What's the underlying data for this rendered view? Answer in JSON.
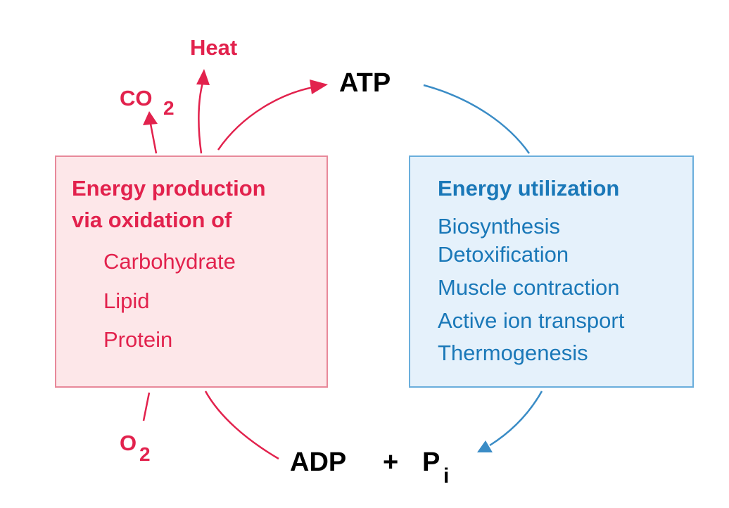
{
  "production": {
    "title_line1": "Energy production",
    "title_line2": "via oxidation of",
    "items": [
      "Carbohydrate",
      "Lipid",
      "Protein"
    ]
  },
  "utilization": {
    "title": "Energy utilization",
    "items": [
      "Biosynthesis",
      "Detoxification",
      "Muscle contraction",
      "Active ion transport",
      "Thermogenesis"
    ]
  },
  "outputs": {
    "heat": "Heat",
    "co2_base": "CO",
    "co2_sub": "2"
  },
  "inputs": {
    "o2_base": "O",
    "o2_sub": "2"
  },
  "cycle": {
    "atp": "ATP",
    "adp": "ADP",
    "plus": "+",
    "pi_base": "P",
    "pi_sub": "i"
  },
  "colors": {
    "production_text": "#e2224d",
    "production_fill": "#fde7e9",
    "production_border": "#e8899a",
    "utilization_text": "#1a78b8",
    "utilization_fill": "#e5f1fb",
    "utilization_border": "#6aaedc",
    "cycle_text": "#000000"
  }
}
